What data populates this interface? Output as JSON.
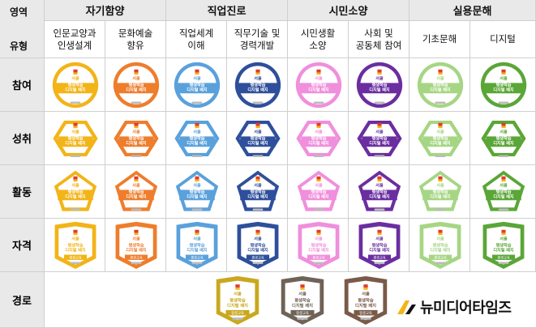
{
  "header": {
    "area_label": "영역",
    "type_label": "유형",
    "areas": [
      {
        "label": "자기함양"
      },
      {
        "label": "직업진로"
      },
      {
        "label": "시민소양"
      },
      {
        "label": "실용문해"
      }
    ],
    "types": [
      {
        "label": "인문교양과\n인생설계"
      },
      {
        "label": "문화예술\n향유"
      },
      {
        "label": "직업세계\n이해"
      },
      {
        "label": "직무기술 및\n경력개발"
      },
      {
        "label": "시민생활\n소양"
      },
      {
        "label": "사회 및\n공동체 참여"
      },
      {
        "label": "기초문해"
      },
      {
        "label": "디지털"
      }
    ]
  },
  "rows": [
    {
      "label": "참여",
      "shape": "circle"
    },
    {
      "label": "성취",
      "shape": "hexagon"
    },
    {
      "label": "활동",
      "shape": "pentagon"
    },
    {
      "label": "자격",
      "shape": "shield"
    },
    {
      "label": "경로",
      "shape": "path"
    }
  ],
  "badge_text": {
    "line1": "서울",
    "line2": "평생학습",
    "line3": "디지털 배지",
    "cert_label": "평생교육"
  },
  "colors": [
    "#f2b417",
    "#ee7d2c",
    "#5aa1dc",
    "#2e4f9b",
    "#f08fdc",
    "#6a2ea0",
    "#a6d684",
    "#5aa637"
  ],
  "path_colors": [
    "#c9a820",
    "#6f6257",
    "#7a5a48"
  ],
  "logo": {
    "text": "뉴미디어타임즈",
    "icon": "arrow-logo-icon"
  }
}
